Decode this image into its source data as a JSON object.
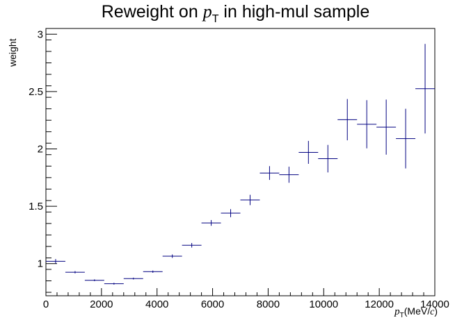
{
  "chart_data": {
    "type": "scatter",
    "title_prefix": "Reweight on ",
    "title_var": "p",
    "title_sub": "T",
    "title_suffix": " in high-mul sample",
    "ylabel": "weight",
    "xlabel_var": "p",
    "xlabel_sub": "T",
    "xlabel_open": "(MeV/",
    "xlabel_c": "c",
    "xlabel_close": ")",
    "xlim": [
      0,
      14000
    ],
    "ylim": [
      0.72,
      3.05
    ],
    "x_ticks": [
      0,
      2000,
      4000,
      6000,
      8000,
      10000,
      12000,
      14000
    ],
    "x_tick_labels": [
      "0",
      "2000",
      "4000",
      "6000",
      "8000",
      "10000",
      "12000",
      "14000"
    ],
    "y_ticks": [
      1,
      1.5,
      2,
      2.5,
      3
    ],
    "y_tick_labels": [
      "1",
      "1.5",
      "2",
      "2.5",
      "3"
    ],
    "bin_width": 700,
    "series": [
      {
        "color": "#000080",
        "points": [
          {
            "x": 350,
            "y": 1.02,
            "err": 0.02
          },
          {
            "x": 1050,
            "y": 0.925,
            "err": 0.01
          },
          {
            "x": 1750,
            "y": 0.855,
            "err": 0.008
          },
          {
            "x": 2450,
            "y": 0.825,
            "err": 0.008
          },
          {
            "x": 3150,
            "y": 0.87,
            "err": 0.008
          },
          {
            "x": 3850,
            "y": 0.93,
            "err": 0.01
          },
          {
            "x": 4550,
            "y": 1.065,
            "err": 0.015
          },
          {
            "x": 5250,
            "y": 1.16,
            "err": 0.02
          },
          {
            "x": 5950,
            "y": 1.355,
            "err": 0.025
          },
          {
            "x": 6650,
            "y": 1.44,
            "err": 0.035
          },
          {
            "x": 7350,
            "y": 1.555,
            "err": 0.045
          },
          {
            "x": 8050,
            "y": 1.79,
            "err": 0.06
          },
          {
            "x": 8750,
            "y": 1.775,
            "err": 0.07
          },
          {
            "x": 9450,
            "y": 1.97,
            "err": 0.1
          },
          {
            "x": 10150,
            "y": 1.915,
            "err": 0.12
          },
          {
            "x": 10850,
            "y": 2.255,
            "err": 0.18
          },
          {
            "x": 11550,
            "y": 2.215,
            "err": 0.21
          },
          {
            "x": 12250,
            "y": 2.19,
            "err": 0.24
          },
          {
            "x": 12950,
            "y": 2.09,
            "err": 0.26
          },
          {
            "x": 13650,
            "y": 2.525,
            "err": 0.39
          }
        ]
      }
    ]
  }
}
